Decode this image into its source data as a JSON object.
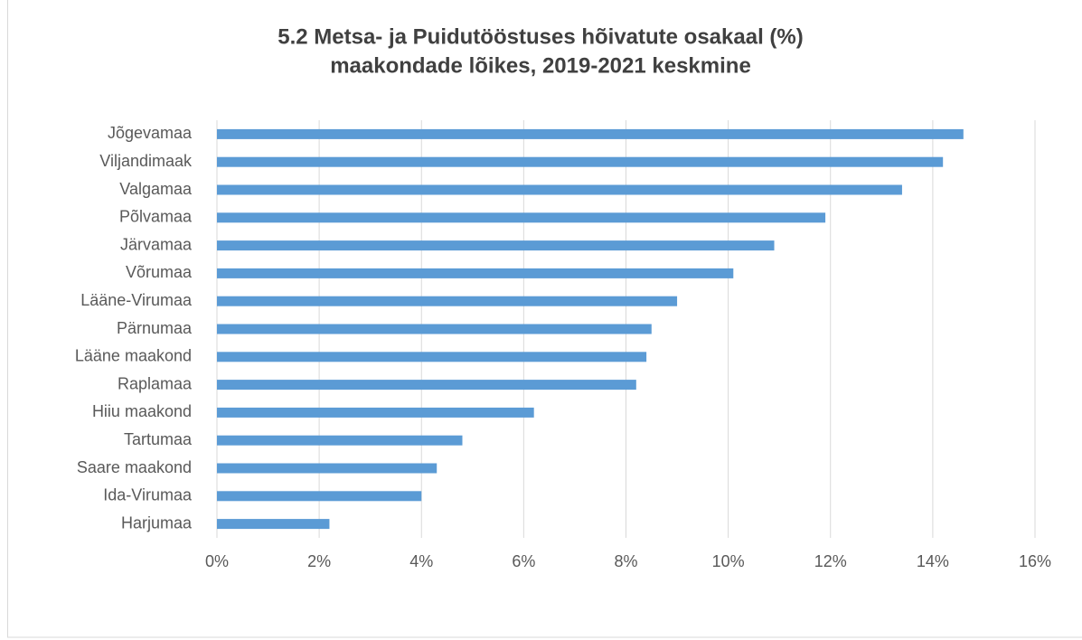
{
  "chart_data": {
    "type": "bar",
    "orientation": "horizontal",
    "title": [
      "5.2 Metsa- ja Puidutööstuses hõivatute osakaal (%)",
      "maakondade lõikes, 2019-2021 keskmine"
    ],
    "categories": [
      "Jõgevamaa",
      "Viljandimaak",
      "Valgamaa",
      "Põlvamaa",
      "Järvamaa",
      "Võrumaa",
      "Lääne-Virumaa",
      "Pärnumaa",
      "Lääne maakond",
      "Raplamaa",
      "Hiiu maakond",
      "Tartumaa",
      "Saare maakond",
      "Ida-Virumaa",
      "Harjumaa"
    ],
    "values": [
      14.6,
      14.2,
      13.4,
      11.9,
      10.9,
      10.1,
      9.0,
      8.5,
      8.4,
      8.2,
      6.2,
      4.8,
      4.3,
      4.0,
      2.2
    ],
    "color": "#5b9bd5",
    "xlim": [
      0,
      16
    ],
    "xticks": [
      {
        "value": 0,
        "label": "0%"
      },
      {
        "value": 2,
        "label": "2%"
      },
      {
        "value": 4,
        "label": "4%"
      },
      {
        "value": 6,
        "label": "6%"
      },
      {
        "value": 8,
        "label": "8%"
      },
      {
        "value": 10,
        "label": "10%"
      },
      {
        "value": 12,
        "label": "12%"
      },
      {
        "value": 14,
        "label": "14%"
      },
      {
        "value": 16,
        "label": "16%"
      }
    ],
    "grid": true
  }
}
